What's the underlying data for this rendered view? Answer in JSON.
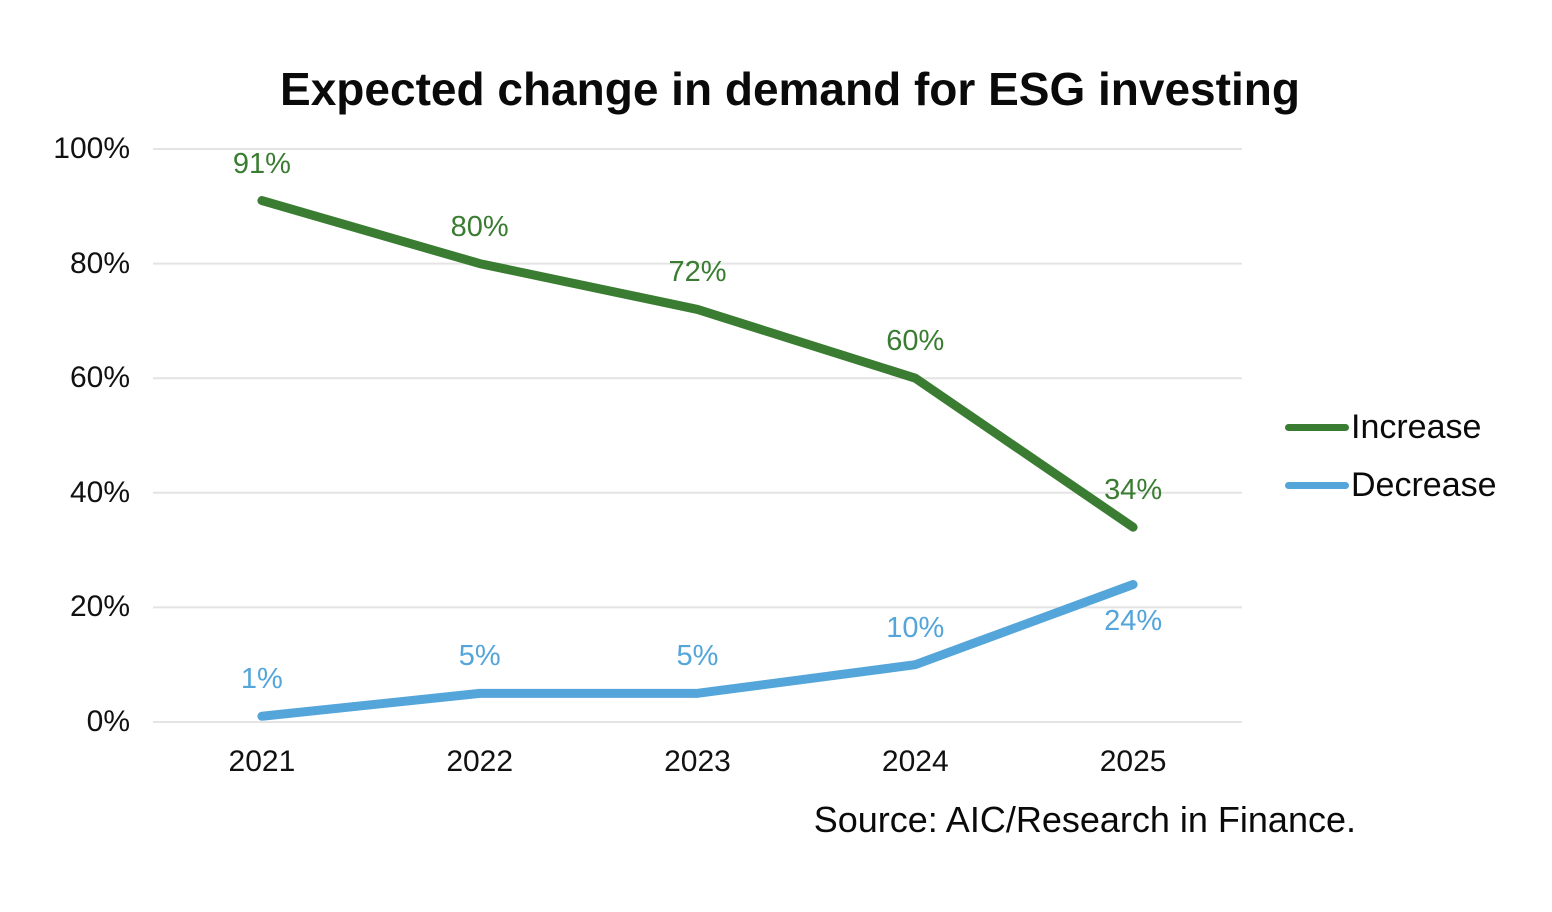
{
  "title": "Expected change in demand for ESG investing",
  "source_note": "Source: AIC/Research in Finance.",
  "colors": {
    "increase": "#3a7d32",
    "decrease": "#54a5da",
    "grid": "#e4e4e4",
    "text": "#0a0a0a"
  },
  "chart_data": {
    "type": "line",
    "title": "Expected change in demand for ESG investing",
    "categories": [
      "2021",
      "2022",
      "2023",
      "2024",
      "2025"
    ],
    "series": [
      {
        "name": "Increase",
        "color": "#3a7d32",
        "values": [
          91,
          80,
          72,
          60,
          34
        ],
        "data_labels": [
          "91%",
          "80%",
          "72%",
          "60%",
          "34%"
        ],
        "label_placement": [
          "above",
          "above",
          "above",
          "above",
          "above"
        ]
      },
      {
        "name": "Decrease",
        "color": "#54a5da",
        "values": [
          1,
          5,
          5,
          10,
          24
        ],
        "data_labels": [
          "1%",
          "5%",
          "5%",
          "10%",
          "24%"
        ],
        "label_placement": [
          "above",
          "above",
          "above",
          "above",
          "below"
        ]
      }
    ],
    "xlabel": "",
    "ylabel": "",
    "ylim": [
      0,
      100
    ],
    "yticks": [
      0,
      20,
      40,
      60,
      80,
      100
    ],
    "ytick_labels": [
      "0%",
      "20%",
      "40%",
      "60%",
      "80%",
      "100%"
    ],
    "grid": true,
    "legend_position": "right",
    "source": "Source: AIC/Research in Finance."
  }
}
